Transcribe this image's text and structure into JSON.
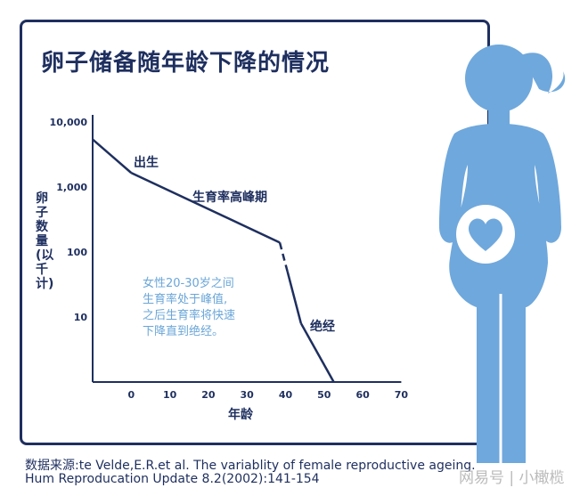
{
  "title": "卵子储备随年龄下降的情况",
  "chart_data": {
    "type": "line",
    "xlabel": "年龄",
    "ylabel": "卵子数量(以千计)",
    "yscale": "log",
    "ylim": [
      1,
      10000
    ],
    "xlim": [
      -10,
      70
    ],
    "xticks": [
      0,
      10,
      20,
      30,
      40,
      50,
      60,
      70
    ],
    "yticks": [
      {
        "v": 10000,
        "label": "10,000"
      },
      {
        "v": 1000,
        "label": "1,000"
      },
      {
        "v": 100,
        "label": "100"
      },
      {
        "v": 10,
        "label": "10"
      }
    ],
    "grid": false,
    "series": [
      {
        "points": [
          [
            -10,
            5400
          ],
          [
            0,
            1650
          ],
          [
            38.5,
            140
          ],
          [
            40.5,
            50
          ],
          [
            44,
            8
          ],
          [
            52.5,
            1
          ]
        ],
        "dashed_segment": [
          38.5,
          40.5
        ]
      }
    ],
    "annotations": [
      {
        "text": "出生"
      },
      {
        "text": "生育率高峰期"
      },
      {
        "text": "绝经"
      },
      {
        "text": "女性20-30岁之间\n生育率处于峰值,\n之后生育率将快速\n下降直到绝经。"
      }
    ],
    "colors": {
      "line": "#1e2f5f",
      "note": "#6aa6d8",
      "figure": "#6fa8dc"
    }
  },
  "source": {
    "line1": "数据来源:te Velde,E.R.et al. The variablity of female reproductive ageing.",
    "line2": "Hum Reproducation Update 8.2(2002):141-154"
  },
  "watermark": "网易号 | 小橄榄"
}
